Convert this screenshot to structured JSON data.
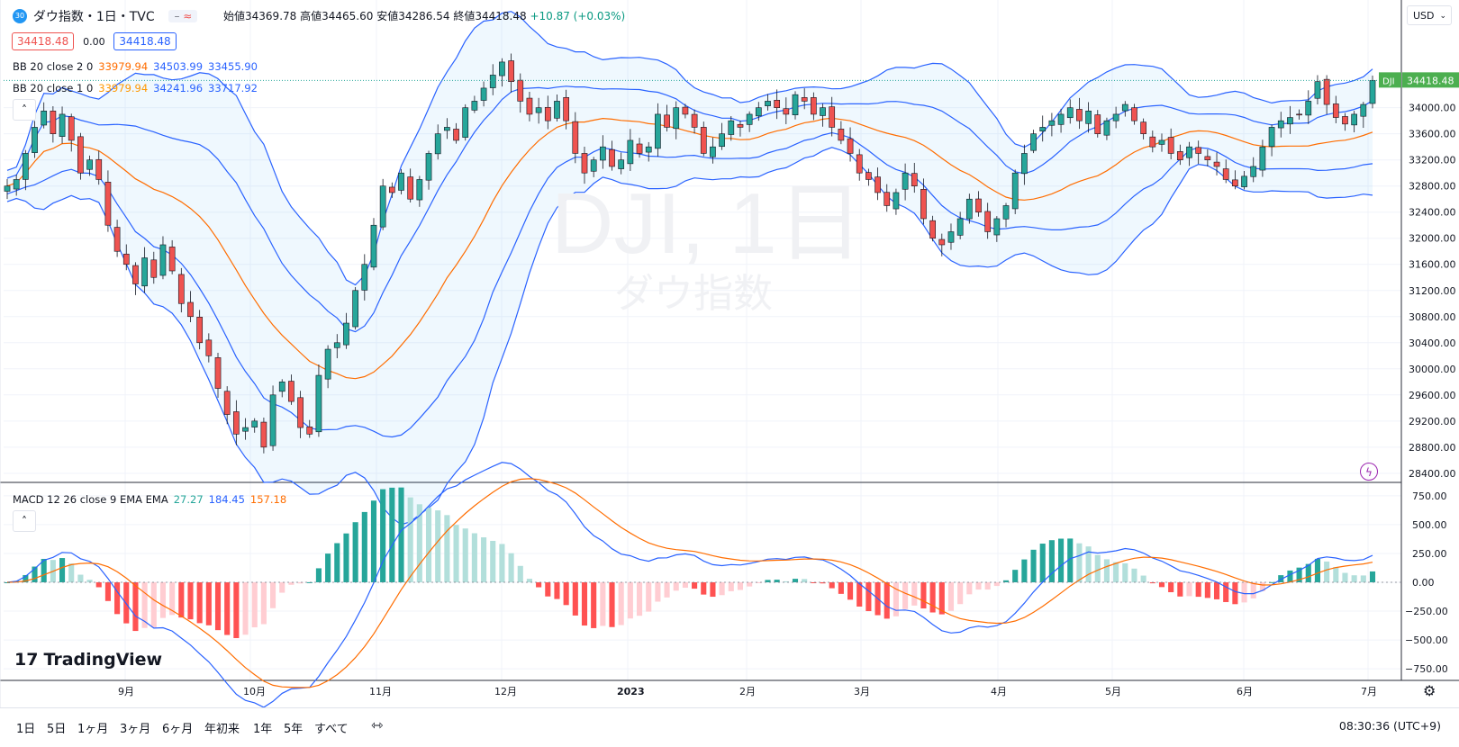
{
  "header": {
    "symbol_badge": "30",
    "title": "ダウ指数・1日・TVC",
    "ohlc_label_open": "始値",
    "ohlc_open": "34369.78",
    "ohlc_label_high": "高値",
    "ohlc_high": "34465.60",
    "ohlc_label_low": "安値",
    "ohlc_low": "34286.54",
    "ohlc_label_close": "終値",
    "ohlc_close": "34418.48",
    "change": "+10.87 (+0.03%)",
    "sell_price": "34418.48",
    "spread": "0.00",
    "buy_price": "34418.48"
  },
  "indicators": {
    "bb2_label": "BB 20 close 2 0",
    "bb2_basis": "33979.94",
    "bb2_upper": "34503.99",
    "bb2_lower": "33455.90",
    "bb1_label": "BB 20 close 1 0",
    "bb1_basis": "33979.94",
    "bb1_upper": "34241.96",
    "bb1_lower": "33717.92",
    "macd_label": "MACD 12 26 close 9 EMA EMA",
    "macd_hist": "27.27",
    "macd_line": "184.45",
    "macd_signal": "157.18"
  },
  "watermark": {
    "symbol": "DJI, 1日",
    "name": "ダウ指数"
  },
  "currency": "USD",
  "last_price_label": {
    "symbol": "DJI",
    "value": "34418.48"
  },
  "logo_text": "TradingView",
  "range_buttons": [
    "1日",
    "5日",
    "1ヶ月",
    "3ヶ月",
    "6ヶ月",
    "年初来",
    "1年",
    "5年",
    "すべて"
  ],
  "clock": "08:30:36 (UTC+9)",
  "colors": {
    "up": "#26a69a",
    "down": "#ef5350",
    "bb_outer": "#2962ff",
    "bb_basis": "#ff6d00",
    "macd_line": "#2962ff",
    "macd_signal": "#ff6d00"
  },
  "chart_data": [
    {
      "type": "candlestick",
      "title": "ダウ指数・1日・TVC",
      "y_ticks": [
        28400,
        28800,
        29200,
        29600,
        30000,
        30400,
        30800,
        31200,
        31600,
        32000,
        32400,
        32800,
        33200,
        33600,
        34000
      ],
      "ylim": [
        28260,
        35650
      ],
      "x_ticks": [
        "9月",
        "10月",
        "11月",
        "12月",
        "2023",
        "2月",
        "3月",
        "4月",
        "5月",
        "6月",
        "7月"
      ],
      "close_series": [
        32800,
        32900,
        33300,
        33700,
        33950,
        33600,
        33900,
        33500,
        33000,
        33200,
        32900,
        32200,
        31800,
        31600,
        31300,
        31700,
        31400,
        31900,
        31500,
        31000,
        30800,
        30400,
        30200,
        29700,
        29300,
        29000,
        29100,
        29200,
        28800,
        29600,
        29800,
        29500,
        29100,
        29000,
        29900,
        30300,
        30400,
        30700,
        31200,
        31600,
        32200,
        32800,
        32700,
        33000,
        32600,
        32900,
        33300,
        33600,
        33700,
        33500,
        34000,
        34100,
        34300,
        34500,
        34700,
        34400,
        34100,
        33900,
        34000,
        33800,
        34100,
        33800,
        33300,
        33000,
        33200,
        33400,
        33100,
        33200,
        33500,
        33300,
        33400,
        33900,
        33700,
        34000,
        33900,
        33700,
        33300,
        33400,
        33600,
        33800,
        33700,
        33900,
        34000,
        34100,
        34000,
        33900,
        34200,
        34100,
        33900,
        34000,
        33700,
        33500,
        33300,
        33000,
        32900,
        32700,
        32500,
        32700,
        33000,
        32800,
        32300,
        32000,
        31900,
        32100,
        32300,
        32600,
        32400,
        32100,
        32300,
        32500,
        33000,
        33300,
        33600,
        33700,
        33800,
        33900,
        34000,
        33800,
        33950,
        33600,
        33800,
        33900,
        34050,
        33800,
        33600,
        33400,
        33500,
        33300,
        33200,
        33400,
        33300,
        33200,
        33100,
        32900,
        32800,
        32950,
        33100,
        33400,
        33700,
        33800,
        33850,
        33900,
        34100,
        34400,
        34050,
        33850,
        33750,
        33900,
        34050,
        34418
      ],
      "bb20_2sd": {
        "basis": 33979.94,
        "upper": 34503.99,
        "lower": 33455.9
      },
      "bb20_1sd": {
        "basis": 33979.94,
        "upper": 34241.96,
        "lower": 33717.92
      }
    },
    {
      "type": "macd",
      "title": "MACD 12 26 close 9 EMA EMA",
      "y_ticks": [
        -750,
        -500,
        -250,
        0,
        250,
        500,
        750
      ],
      "ylim": [
        -850,
        850
      ],
      "last": {
        "histogram": 27.27,
        "macd": 184.45,
        "signal": 157.18
      }
    }
  ]
}
